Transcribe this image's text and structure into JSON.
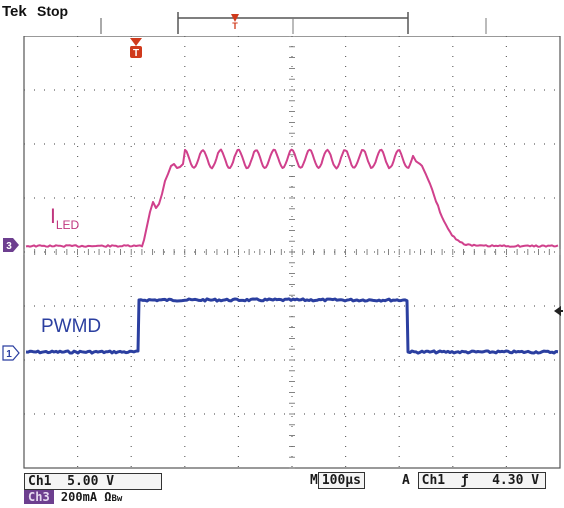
{
  "header": {
    "brand": "Tek",
    "acquisition_state": "Stop"
  },
  "waveform_labels": {
    "ch3_label_main": "I",
    "ch3_label_sub": "LED",
    "ch1_label": "PWMD"
  },
  "channel_markers": {
    "ch3": "3",
    "ch1": "1",
    "trigger_T": "T"
  },
  "readouts": {
    "ch1_name": "Ch1",
    "ch1_scale": "5.00 V",
    "ch3_name": "Ch3",
    "ch3_scale": "200mA Ω",
    "ch3_bw_symbol": "Bw",
    "timebase_prefix": "M",
    "timebase": "100µs",
    "trigger_prefix": "A",
    "trigger_source": "Ch1",
    "trigger_slope": "ƒ",
    "trigger_level": "4.30 V"
  },
  "colors": {
    "ch1_trace": "#2b3fa0",
    "ch3_trace": "#d0408c",
    "trigger_marker": "#d03a1c",
    "grid": "#666666"
  }
}
